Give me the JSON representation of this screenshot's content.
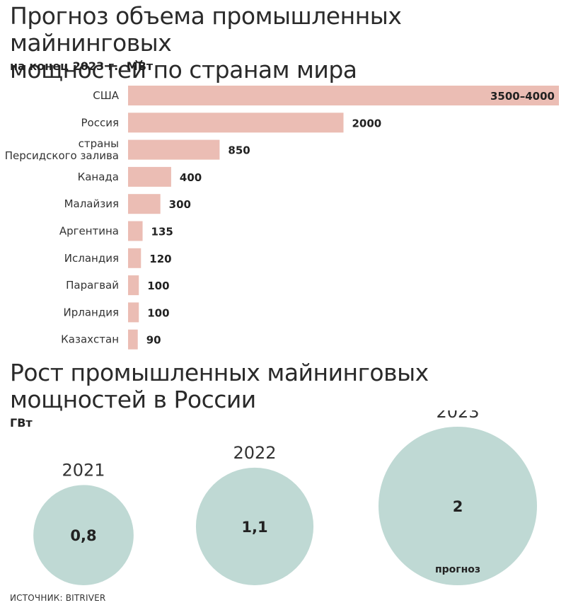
{
  "charts": {
    "bar_title_line1": "Прогноз объема промышленных майнинговых",
    "bar_title_line2": "мощностей по странам мира",
    "bar_subtitle": "на конец 2023 г., МВт",
    "bubble_title_line1": "Рост промышленных майнинговых",
    "bubble_title_line2": "мощностей в России",
    "bubble_subtitle": "ГВт",
    "source": "ИСТОЧНИК: BITRIVER"
  },
  "colors": {
    "bar": "#ebbdb4",
    "bubble": "#bfd9d4",
    "text": "#222222"
  },
  "chart_data": [
    {
      "type": "bar",
      "orientation": "horizontal",
      "title": "Прогноз объема промышленных майнинговых мощностей по странам мира",
      "subtitle": "на конец 2023 г., МВт",
      "unit": "МВт",
      "categories": [
        [
          "США"
        ],
        [
          "Россия"
        ],
        [
          "страны",
          "Персидского залива"
        ],
        [
          "Канада"
        ],
        [
          "Малайзия"
        ],
        [
          "Аргентина"
        ],
        [
          "Исландия"
        ],
        [
          "Парагвай"
        ],
        [
          "Ирландия"
        ],
        [
          "Казахстан"
        ]
      ],
      "values": [
        4000,
        2000,
        850,
        400,
        300,
        135,
        120,
        100,
        100,
        90
      ],
      "value_labels": [
        "3500–4000",
        "2000",
        "850",
        "400",
        "300",
        "135",
        "120",
        "100",
        "100",
        "90"
      ],
      "xlim": [
        0,
        4000
      ]
    },
    {
      "type": "bubble",
      "title": "Рост промышленных майнинговых мощностей в России",
      "subtitle": "ГВт",
      "unit": "ГВт",
      "categories": [
        "2021",
        "2022",
        "2023"
      ],
      "values": [
        0.8,
        1.1,
        2
      ],
      "value_labels": [
        "0,8",
        "1,1",
        "2"
      ],
      "notes": [
        "",
        "",
        "прогноз"
      ]
    }
  ]
}
